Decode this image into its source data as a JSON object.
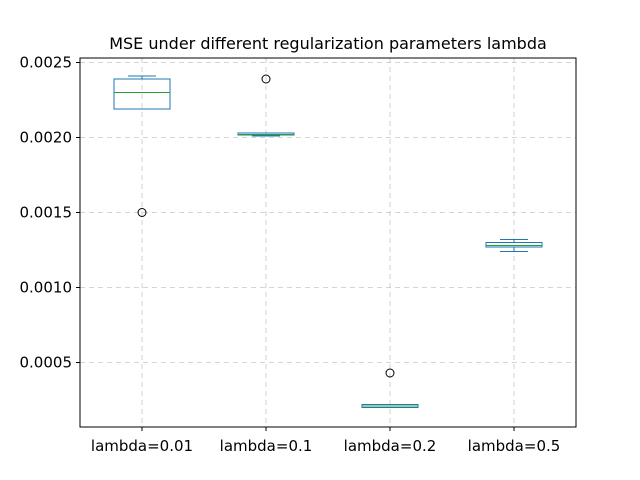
{
  "chart_data": {
    "type": "boxplot",
    "title": "MSE under different regularization parameters lambda",
    "xlabel": "",
    "ylabel": "",
    "ylim": [
      7e-05,
      0.00253
    ],
    "yticks": [
      0.0005,
      0.001,
      0.0015,
      0.002,
      0.0025
    ],
    "ytick_labels": [
      "0.0005",
      "0.0010",
      "0.0015",
      "0.0020",
      "0.0025"
    ],
    "grid": true,
    "colors": {
      "box": "#1f77b4",
      "median": "#2ca02c",
      "grid": "#b0b0b0"
    },
    "boxes": [
      {
        "label": "lambda=0.01",
        "whisker_low": 0.00219,
        "q1": 0.00219,
        "median": 0.0023,
        "q3": 0.00239,
        "whisker_high": 0.00241,
        "outliers": [
          0.0015
        ]
      },
      {
        "label": "lambda=0.1",
        "whisker_low": 0.00201,
        "q1": 0.00202,
        "median": 0.00202,
        "q3": 0.00203,
        "whisker_high": 0.00203,
        "outliers": [
          0.00239
        ]
      },
      {
        "label": "lambda=0.2",
        "whisker_low": 0.0002,
        "q1": 0.0002,
        "median": 0.00021,
        "q3": 0.00022,
        "whisker_high": 0.00022,
        "outliers": [
          0.00043
        ]
      },
      {
        "label": "lambda=0.5",
        "whisker_low": 0.00124,
        "q1": 0.00127,
        "median": 0.00128,
        "q3": 0.0013,
        "whisker_high": 0.00132,
        "outliers": []
      }
    ]
  }
}
